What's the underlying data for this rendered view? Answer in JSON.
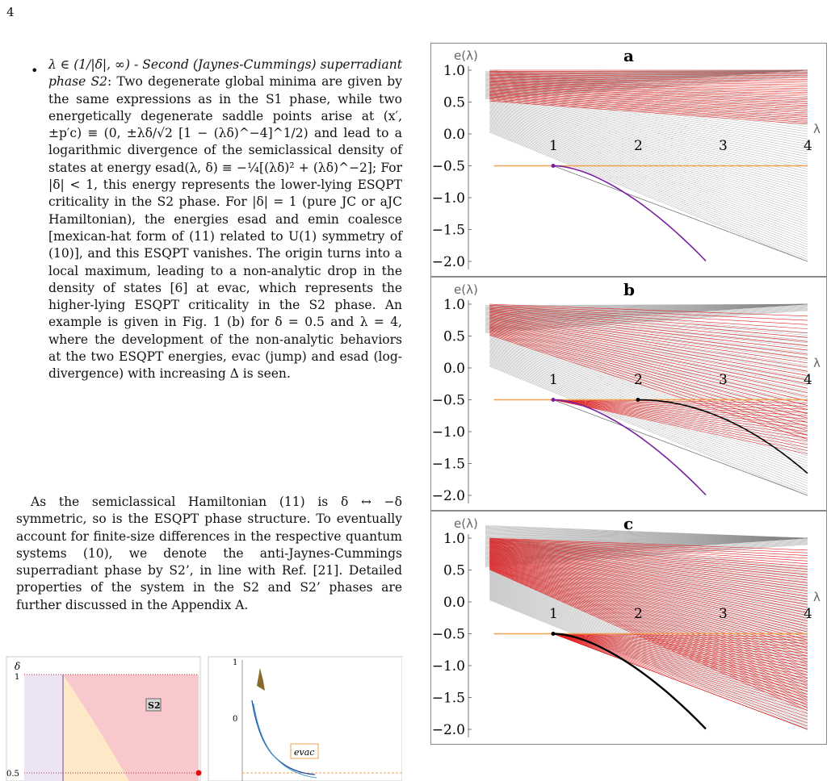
{
  "page_number": "4",
  "text": {
    "bullet_math": "λ ∈ (1/|δ|, ∞)",
    "bullet_title": "Second (Jaynes-Cummings) superradiant phase S2",
    "bullet_body_1": "Two degenerate global minima are given by the same expressions as in the S1 phase, while two energetically degenerate saddle points arise at (x′, ±p′c) ≡ (0, ±λδ/√2 [1 − (λδ)^−4]^1/2) and lead to a logarithmic divergence of the semiclassical density of states at energy esad(λ, δ) ≡ −¼[(λδ)² + (λδ)^−2]; For |δ| < 1, this energy represents the lower-lying ESQPT criticality in the S2 phase. For |δ| = 1 (pure JC or aJC Hamiltonian), the energies esad and emin coalesce [mexican-hat form of (11) related to U(1) symmetry of (10)], and this ESQPT vanishes. The origin turns into a local maximum, leading to a non-analytic drop in the density of states [6] at evac, which represents the higher-lying ESQPT criticality in the S2 phase. An example is given in Fig. 1 (b) for δ = 0.5 and λ = 4, where the development of the non-analytic behaviors at the two ESQPT energies, evac (jump) and esad (log-divergence) with increasing Δ is seen.",
    "para2": "As the semiclassical Hamiltonian (11) is δ ↔ −δ symmetric, so is the ESQPT phase structure. To eventually account for finite-size differences in the respective quantum systems (10), we denote the anti-Jaynes-Cummings superradiant phase by S2’, in line with Ref. [21]. Detailed properties of the system in the S2 and S2’ phases are further discussed in the Appendix A."
  },
  "figure": {
    "ylabel": "e(λ)",
    "xlabel": "λ",
    "ytick_labels": [
      "1.0",
      "0.5",
      "0.0",
      "−0.5",
      "−1.0",
      "−1.5",
      "−2.0"
    ],
    "xtick_labels": [
      "1",
      "2",
      "3",
      "4"
    ],
    "colors": {
      "thin_levels": "#888888",
      "red_levels": "#e02020",
      "horizontal_line": "#f0a050",
      "purple_curve": "#7a1fa0",
      "black_curve": "#000000"
    },
    "panels": [
      {
        "label": "a",
        "style": "sparse",
        "critical_points": [
          1
        ]
      },
      {
        "label": "b",
        "style": "mixed",
        "critical_points": [
          1,
          2
        ]
      },
      {
        "label": "c",
        "style": "dense",
        "critical_points": [
          1
        ]
      }
    ]
  },
  "bottom_figure": {
    "left_ylabel": "δ",
    "left_yticks": [
      "1",
      "0.5"
    ],
    "phase_label": "S2",
    "right_yticks": [
      "1",
      "0"
    ],
    "right_label": "evac"
  },
  "chart_data": [
    {
      "type": "line",
      "title": "a",
      "xlabel": "λ",
      "ylabel": "e(λ)",
      "xlim": [
        0,
        4
      ],
      "ylim": [
        -2.0,
        1.0
      ],
      "x": [
        1,
        2,
        3,
        4
      ],
      "series": [
        {
          "values": [
            -0.5,
            -0.5,
            -0.5,
            -0.5
          ]
        }
      ]
    },
    {
      "type": "line",
      "title": "b",
      "xlabel": "λ",
      "ylabel": "e(λ)",
      "xlim": [
        0,
        4
      ],
      "ylim": [
        -2.0,
        1.0
      ],
      "x": [
        1,
        2,
        3,
        4
      ],
      "series": [
        {
          "values": [
            -0.5,
            -0.5,
            -0.5,
            -0.5
          ]
        }
      ]
    },
    {
      "type": "line",
      "title": "c",
      "xlabel": "λ",
      "ylabel": "e(λ)",
      "xlim": [
        0,
        4
      ],
      "ylim": [
        -2.0,
        1.0
      ],
      "x": [
        1,
        2,
        3,
        4
      ],
      "series": [
        {
          "values": [
            -0.5,
            -0.5,
            -0.5,
            -0.5
          ]
        }
      ]
    }
  ]
}
